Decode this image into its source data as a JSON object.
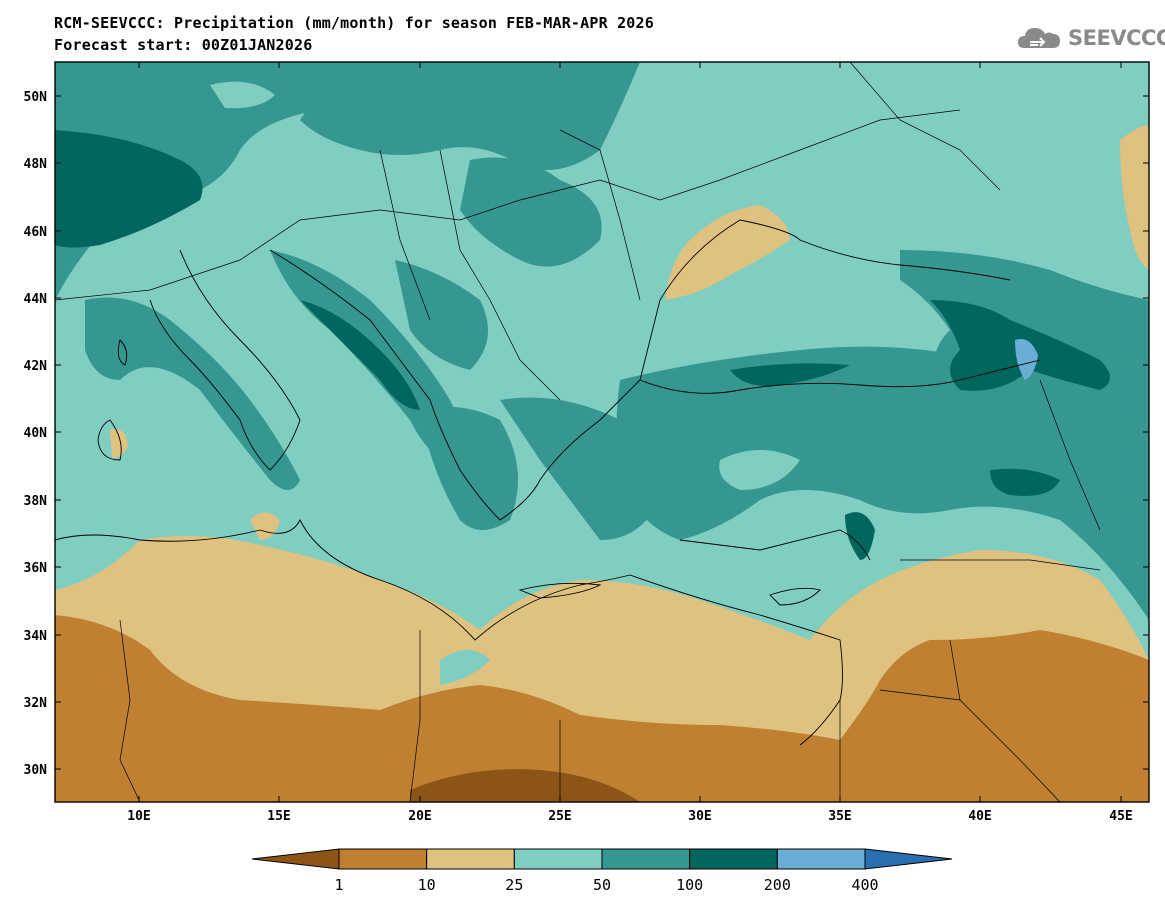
{
  "header": {
    "title": "RCM-SEEVCCC: Precipitation (mm/month) for season FEB-MAR-APR 2026",
    "subtitle": "Forecast start: 00Z01JAN2026"
  },
  "logo": {
    "text": "SEEVCCC",
    "icon": "cloud-icon"
  },
  "map": {
    "lon_range": [
      7,
      46
    ],
    "lat_range": [
      29,
      51
    ],
    "lat_ticks": [
      "50N",
      "48N",
      "46N",
      "44N",
      "42N",
      "40N",
      "38N",
      "36N",
      "34N",
      "32N",
      "30N"
    ],
    "lon_ticks": [
      "10E",
      "15E",
      "20E",
      "25E",
      "30E",
      "35E",
      "40E",
      "45E"
    ]
  },
  "legend": {
    "levels": [
      "1",
      "10",
      "25",
      "50",
      "100",
      "200",
      "400"
    ],
    "colors": [
      "#8c5515",
      "#bf8032",
      "#dfc280",
      "#80cdc1",
      "#35978f",
      "#01665e",
      "#6aaed6",
      "#2a6fb0"
    ]
  }
}
